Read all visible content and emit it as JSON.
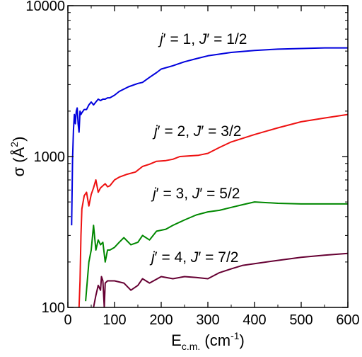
{
  "chart_data": {
    "type": "line",
    "xlabel": {
      "main": "E",
      "sub": "c.m.",
      "unit_pre": " (cm",
      "unit_sup": "-1",
      "unit_post": ")"
    },
    "ylabel": {
      "main": "σ (Å",
      "sup": "2",
      "post": ")"
    },
    "xlim": [
      0,
      600
    ],
    "ylim": [
      100,
      10000
    ],
    "yscale": "log",
    "xticks": [
      0,
      100,
      200,
      300,
      400,
      500,
      600
    ],
    "xtick_labels": [
      "0",
      "100",
      "200",
      "300",
      "400",
      "500",
      "600"
    ],
    "yticks": [
      100,
      1000,
      10000
    ],
    "ytick_labels": [
      "100",
      "1000",
      "10000"
    ],
    "grid": false,
    "series": [
      {
        "name": "j′ = 1, J′ = 1/2",
        "label_parts": {
          "j": "j",
          "jval": "′ = 1, ",
          "J": "J",
          "Jval": "′ = 1/2"
        },
        "color": "#0000dd",
        "points": [
          [
            8,
            350
          ],
          [
            10,
            950
          ],
          [
            12,
            1500
          ],
          [
            14,
            1900
          ],
          [
            16,
            1650
          ],
          [
            18,
            2000
          ],
          [
            20,
            2100
          ],
          [
            22,
            1650
          ],
          [
            24,
            1450
          ],
          [
            26,
            2000
          ],
          [
            28,
            1900
          ],
          [
            30,
            1950
          ],
          [
            35,
            2050
          ],
          [
            40,
            2050
          ],
          [
            45,
            2200
          ],
          [
            50,
            2300
          ],
          [
            55,
            2200
          ],
          [
            60,
            2300
          ],
          [
            65,
            2400
          ],
          [
            70,
            2350
          ],
          [
            75,
            2400
          ],
          [
            80,
            2400
          ],
          [
            85,
            2450
          ],
          [
            90,
            2450
          ],
          [
            100,
            2550
          ],
          [
            110,
            2700
          ],
          [
            130,
            2900
          ],
          [
            150,
            3050
          ],
          [
            160,
            3100
          ],
          [
            175,
            3350
          ],
          [
            190,
            3600
          ],
          [
            200,
            3800
          ],
          [
            225,
            4000
          ],
          [
            250,
            4250
          ],
          [
            275,
            4450
          ],
          [
            300,
            4650
          ],
          [
            350,
            4900
          ],
          [
            400,
            5050
          ],
          [
            450,
            5150
          ],
          [
            500,
            5200
          ],
          [
            550,
            5250
          ],
          [
            600,
            5250
          ]
        ]
      },
      {
        "name": "j′ = 2, J′ = 3/2",
        "label_parts": {
          "j": "j",
          "jval": "′ = 2, ",
          "J": "J",
          "Jval": "′ = 3/2"
        },
        "color": "#ee1111",
        "points": [
          [
            24,
            100
          ],
          [
            26,
            150
          ],
          [
            28,
            300
          ],
          [
            30,
            450
          ],
          [
            35,
            550
          ],
          [
            40,
            580
          ],
          [
            45,
            470
          ],
          [
            50,
            560
          ],
          [
            55,
            620
          ],
          [
            60,
            700
          ],
          [
            65,
            580
          ],
          [
            70,
            620
          ],
          [
            75,
            640
          ],
          [
            80,
            660
          ],
          [
            85,
            630
          ],
          [
            90,
            640
          ],
          [
            100,
            700
          ],
          [
            110,
            730
          ],
          [
            125,
            760
          ],
          [
            145,
            790
          ],
          [
            160,
            860
          ],
          [
            175,
            890
          ],
          [
            190,
            930
          ],
          [
            210,
            940
          ],
          [
            225,
            960
          ],
          [
            240,
            1000
          ],
          [
            260,
            1010
          ],
          [
            280,
            1020
          ],
          [
            300,
            1050
          ],
          [
            325,
            1150
          ],
          [
            350,
            1250
          ],
          [
            400,
            1400
          ],
          [
            450,
            1550
          ],
          [
            500,
            1700
          ],
          [
            550,
            1800
          ],
          [
            600,
            1900
          ]
        ]
      },
      {
        "name": "j′ = 3, J′ = 5/2",
        "label_parts": {
          "j": "j",
          "jval": "′ = 3, ",
          "J": "J",
          "Jval": "′ = 5/2"
        },
        "color": "#008800",
        "points": [
          [
            38,
            110
          ],
          [
            45,
            200
          ],
          [
            50,
            240
          ],
          [
            55,
            350
          ],
          [
            60,
            240
          ],
          [
            65,
            280
          ],
          [
            70,
            260
          ],
          [
            75,
            270
          ],
          [
            80,
            200
          ],
          [
            85,
            240
          ],
          [
            90,
            240
          ],
          [
            100,
            250
          ],
          [
            110,
            270
          ],
          [
            120,
            290
          ],
          [
            135,
            260
          ],
          [
            150,
            270
          ],
          [
            160,
            300
          ],
          [
            175,
            280
          ],
          [
            190,
            320
          ],
          [
            210,
            330
          ],
          [
            225,
            350
          ],
          [
            250,
            380
          ],
          [
            275,
            410
          ],
          [
            300,
            430
          ],
          [
            325,
            440
          ],
          [
            350,
            460
          ],
          [
            375,
            480
          ],
          [
            400,
            500
          ],
          [
            450,
            490
          ],
          [
            500,
            485
          ],
          [
            550,
            485
          ],
          [
            600,
            485
          ]
        ]
      },
      {
        "name": "j′ = 4, J′ = 7/2",
        "label_parts": {
          "j": "j",
          "jval": "′ = 4, ",
          "J": "J",
          "Jval": "′ = 7/2"
        },
        "color": "#660033",
        "points": [
          [
            55,
            100
          ],
          [
            60,
            120
          ],
          [
            65,
            140
          ],
          [
            70,
            130
          ],
          [
            72,
            160
          ],
          [
            75,
            150
          ],
          [
            78,
            100
          ],
          [
            80,
            145
          ],
          [
            85,
            150
          ],
          [
            90,
            150
          ],
          [
            100,
            150
          ],
          [
            120,
            145
          ],
          [
            135,
            130
          ],
          [
            150,
            140
          ],
          [
            160,
            155
          ],
          [
            175,
            145
          ],
          [
            200,
            160
          ],
          [
            225,
            155
          ],
          [
            250,
            160
          ],
          [
            275,
            158
          ],
          [
            300,
            155
          ],
          [
            325,
            170
          ],
          [
            350,
            180
          ],
          [
            375,
            190
          ],
          [
            400,
            195
          ],
          [
            450,
            205
          ],
          [
            500,
            215
          ],
          [
            550,
            222
          ],
          [
            600,
            228
          ]
        ]
      }
    ]
  }
}
